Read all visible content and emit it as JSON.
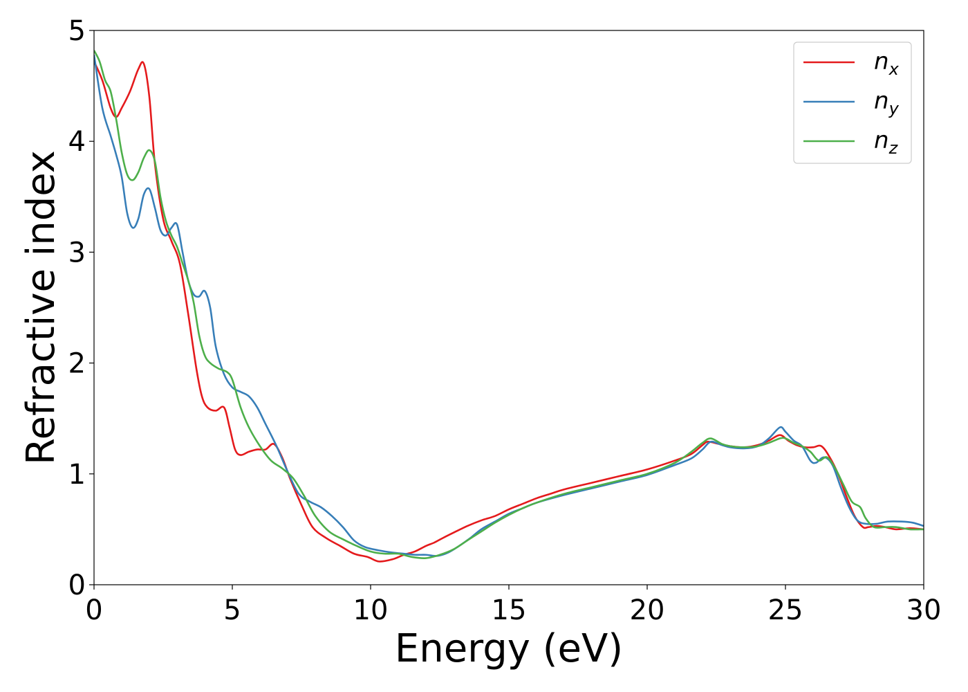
{
  "chart_data": {
    "type": "line",
    "xlabel": "Energy (eV)",
    "ylabel": "Refractive index",
    "xlim": [
      0,
      30
    ],
    "ylim": [
      0,
      5
    ],
    "xticks": [
      0,
      5,
      10,
      15,
      20,
      25,
      30
    ],
    "yticks": [
      0,
      1,
      2,
      3,
      4,
      5
    ],
    "grid": false,
    "legend_position": "top-right",
    "series": [
      {
        "name": "n",
        "subscript": "x",
        "color": "#e41a1c",
        "x": [
          0,
          0.3,
          0.6,
          0.8,
          1.0,
          1.3,
          1.6,
          1.8,
          2.0,
          2.2,
          2.5,
          2.8,
          3.1,
          3.4,
          3.7,
          3.9,
          4.1,
          4.4,
          4.7,
          4.9,
          5.1,
          5.3,
          5.6,
          5.9,
          6.2,
          6.5,
          6.8,
          7.1,
          7.5,
          7.9,
          8.4,
          8.9,
          9.4,
          9.9,
          10.3,
          10.8,
          11.2,
          11.6,
          12.0,
          12.3,
          12.6,
          13.0,
          13.5,
          14.0,
          14.5,
          15.0,
          15.5,
          16.0,
          16.5,
          17.0,
          18.0,
          19.0,
          20.0,
          21.0,
          21.6,
          22.0,
          22.2,
          22.6,
          23.0,
          23.5,
          24.0,
          24.4,
          24.8,
          25.1,
          25.4,
          25.7,
          26.0,
          26.3,
          26.6,
          26.9,
          27.2,
          27.5,
          27.8,
          28.0,
          28.3,
          28.6,
          29.0,
          29.5,
          30.0
        ],
        "values": [
          4.72,
          4.55,
          4.3,
          4.22,
          4.3,
          4.45,
          4.65,
          4.7,
          4.4,
          3.8,
          3.3,
          3.1,
          2.9,
          2.45,
          1.95,
          1.7,
          1.6,
          1.57,
          1.6,
          1.42,
          1.22,
          1.17,
          1.2,
          1.22,
          1.22,
          1.27,
          1.15,
          0.95,
          0.72,
          0.52,
          0.42,
          0.35,
          0.28,
          0.25,
          0.21,
          0.23,
          0.27,
          0.3,
          0.35,
          0.38,
          0.42,
          0.47,
          0.53,
          0.58,
          0.62,
          0.68,
          0.73,
          0.78,
          0.82,
          0.86,
          0.92,
          0.98,
          1.04,
          1.12,
          1.18,
          1.26,
          1.29,
          1.27,
          1.25,
          1.24,
          1.26,
          1.3,
          1.35,
          1.3,
          1.26,
          1.24,
          1.24,
          1.25,
          1.15,
          1.0,
          0.8,
          0.62,
          0.52,
          0.52,
          0.53,
          0.52,
          0.5,
          0.51,
          0.5
        ]
      },
      {
        "name": "n",
        "subscript": "y",
        "color": "#377eb8",
        "x": [
          0,
          0.3,
          0.6,
          0.8,
          1.0,
          1.2,
          1.4,
          1.6,
          1.8,
          2.0,
          2.2,
          2.4,
          2.6,
          2.8,
          3.0,
          3.2,
          3.4,
          3.6,
          3.8,
          4.0,
          4.2,
          4.4,
          4.7,
          5.0,
          5.3,
          5.6,
          5.9,
          6.2,
          6.6,
          7.0,
          7.4,
          7.8,
          8.2,
          8.6,
          9.0,
          9.4,
          9.8,
          10.3,
          10.8,
          11.2,
          11.6,
          12.0,
          12.4,
          12.8,
          13.2,
          13.6,
          14.0,
          14.5,
          15.0,
          15.5,
          16.0,
          17.0,
          18.0,
          19.0,
          20.0,
          21.0,
          21.6,
          22.0,
          22.3,
          22.7,
          23.0,
          23.5,
          24.0,
          24.4,
          24.8,
          25.0,
          25.3,
          25.6,
          25.9,
          26.1,
          26.4,
          26.7,
          27.0,
          27.3,
          27.6,
          27.9,
          28.3,
          28.7,
          29.2,
          29.6,
          30.0
        ],
        "values": [
          4.78,
          4.3,
          4.05,
          3.88,
          3.68,
          3.35,
          3.22,
          3.3,
          3.52,
          3.57,
          3.4,
          3.2,
          3.15,
          3.22,
          3.25,
          3.0,
          2.75,
          2.62,
          2.6,
          2.65,
          2.5,
          2.15,
          1.9,
          1.78,
          1.74,
          1.7,
          1.6,
          1.45,
          1.25,
          1.02,
          0.82,
          0.75,
          0.7,
          0.62,
          0.52,
          0.4,
          0.34,
          0.31,
          0.29,
          0.28,
          0.27,
          0.27,
          0.26,
          0.29,
          0.35,
          0.42,
          0.5,
          0.57,
          0.64,
          0.69,
          0.74,
          0.81,
          0.87,
          0.93,
          0.99,
          1.08,
          1.14,
          1.22,
          1.29,
          1.26,
          1.24,
          1.23,
          1.25,
          1.32,
          1.42,
          1.38,
          1.3,
          1.25,
          1.12,
          1.1,
          1.15,
          1.08,
          0.88,
          0.7,
          0.58,
          0.55,
          0.55,
          0.57,
          0.57,
          0.56,
          0.53
        ]
      },
      {
        "name": "n",
        "subscript": "z",
        "color": "#4daf4a",
        "x": [
          0,
          0.2,
          0.4,
          0.6,
          0.8,
          1.0,
          1.2,
          1.4,
          1.6,
          1.8,
          2.0,
          2.2,
          2.4,
          2.6,
          2.8,
          3.0,
          3.2,
          3.4,
          3.6,
          3.8,
          4.0,
          4.2,
          4.5,
          4.8,
          5.0,
          5.3,
          5.6,
          6.0,
          6.4,
          6.8,
          7.2,
          7.6,
          8.0,
          8.5,
          9.0,
          9.5,
          10.0,
          10.5,
          11.0,
          11.5,
          12.0,
          12.5,
          13.0,
          13.5,
          14.0,
          14.5,
          15.0,
          15.5,
          16.0,
          17.0,
          18.0,
          19.0,
          20.0,
          21.0,
          21.6,
          22.0,
          22.3,
          22.7,
          23.0,
          23.5,
          24.0,
          24.4,
          24.8,
          25.0,
          25.3,
          25.6,
          25.9,
          26.2,
          26.5,
          26.8,
          27.1,
          27.4,
          27.7,
          27.9,
          28.2,
          28.6,
          29.0,
          29.5,
          30.0
        ],
        "values": [
          4.82,
          4.72,
          4.55,
          4.45,
          4.2,
          3.9,
          3.7,
          3.65,
          3.72,
          3.85,
          3.92,
          3.82,
          3.5,
          3.28,
          3.15,
          3.05,
          2.9,
          2.75,
          2.55,
          2.25,
          2.07,
          2.0,
          1.95,
          1.92,
          1.85,
          1.6,
          1.42,
          1.25,
          1.12,
          1.05,
          0.96,
          0.8,
          0.62,
          0.48,
          0.41,
          0.35,
          0.3,
          0.28,
          0.28,
          0.25,
          0.24,
          0.27,
          0.32,
          0.4,
          0.48,
          0.56,
          0.63,
          0.69,
          0.74,
          0.82,
          0.88,
          0.94,
          1.0,
          1.1,
          1.2,
          1.28,
          1.32,
          1.27,
          1.25,
          1.24,
          1.25,
          1.28,
          1.32,
          1.32,
          1.28,
          1.25,
          1.2,
          1.12,
          1.15,
          1.05,
          0.9,
          0.75,
          0.7,
          0.6,
          0.52,
          0.52,
          0.52,
          0.5,
          0.5
        ]
      }
    ]
  }
}
